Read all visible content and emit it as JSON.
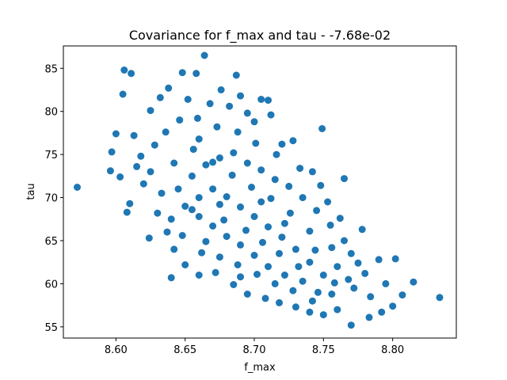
{
  "chart_data": {
    "type": "scatter",
    "title": "Covariance for f_max and tau - -7.68e-02",
    "xlabel": "f_max",
    "ylabel": "tau",
    "xlim": [
      8.562,
      8.846
    ],
    "ylim": [
      53.7,
      87.6
    ],
    "xticks": [
      "8.60",
      "8.65",
      "8.70",
      "8.75",
      "8.80"
    ],
    "xtick_values": [
      8.6,
      8.65,
      8.7,
      8.75,
      8.8
    ],
    "yticks": [
      "55",
      "60",
      "65",
      "70",
      "75",
      "80",
      "85"
    ],
    "ytick_values": [
      55,
      60,
      65,
      70,
      75,
      80,
      85
    ],
    "grid": false,
    "legend": "none",
    "marker_color": "#1f77b4",
    "series": [
      {
        "values": [
          [
            8.572,
            71.2
          ],
          [
            8.834,
            58.4
          ],
          [
            8.606,
            84.8
          ],
          [
            8.611,
            84.4
          ],
          [
            8.605,
            82.0
          ],
          [
            8.664,
            86.5
          ],
          [
            8.648,
            84.5
          ],
          [
            8.658,
            84.4
          ],
          [
            8.687,
            84.2
          ],
          [
            8.638,
            82.7
          ],
          [
            8.676,
            82.5
          ],
          [
            8.69,
            81.8
          ],
          [
            8.705,
            81.4
          ],
          [
            8.71,
            81.3
          ],
          [
            8.632,
            81.6
          ],
          [
            8.652,
            81.4
          ],
          [
            8.625,
            80.1
          ],
          [
            8.749,
            78.0
          ],
          [
            8.6,
            77.4
          ],
          [
            8.613,
            77.2
          ],
          [
            8.597,
            75.3
          ],
          [
            8.596,
            73.1
          ],
          [
            8.603,
            72.4
          ],
          [
            8.61,
            69.3
          ],
          [
            8.608,
            68.3
          ],
          [
            8.624,
            65.3
          ],
          [
            8.64,
            60.7
          ],
          [
            8.815,
            60.2
          ],
          [
            8.807,
            58.7
          ],
          [
            8.8,
            57.4
          ],
          [
            8.792,
            56.7
          ],
          [
            8.783,
            56.1
          ],
          [
            8.77,
            55.2
          ],
          [
            8.76,
            57.0
          ],
          [
            8.772,
            59.5
          ],
          [
            8.78,
            61.2
          ],
          [
            8.79,
            62.8
          ],
          [
            8.802,
            62.9
          ],
          [
            8.795,
            60.0
          ],
          [
            8.778,
            66.3
          ],
          [
            8.762,
            67.6
          ],
          [
            8.753,
            69.5
          ],
          [
            8.765,
            72.2
          ],
          [
            8.742,
            73.0
          ],
          [
            8.728,
            76.6
          ],
          [
            8.72,
            76.2
          ],
          [
            8.712,
            79.6
          ],
          [
            8.7,
            78.8
          ],
          [
            8.695,
            79.8
          ],
          [
            8.682,
            80.6
          ],
          [
            8.668,
            80.9
          ],
          [
            8.659,
            79.2
          ],
          [
            8.646,
            79.0
          ],
          [
            8.636,
            77.6
          ],
          [
            8.628,
            76.1
          ],
          [
            8.618,
            74.8
          ],
          [
            8.625,
            73.0
          ],
          [
            8.633,
            70.5
          ],
          [
            8.63,
            68.2
          ],
          [
            8.637,
            66.0
          ],
          [
            8.642,
            64.0
          ],
          [
            8.65,
            62.2
          ],
          [
            8.66,
            61.0
          ],
          [
            8.672,
            61.3
          ],
          [
            8.685,
            59.9
          ],
          [
            8.695,
            58.8
          ],
          [
            8.708,
            58.3
          ],
          [
            8.718,
            57.8
          ],
          [
            8.73,
            57.3
          ],
          [
            8.74,
            56.7
          ],
          [
            8.75,
            56.4
          ],
          [
            8.746,
            59.0
          ],
          [
            8.735,
            60.3
          ],
          [
            8.722,
            61.0
          ],
          [
            8.71,
            62.0
          ],
          [
            8.7,
            63.3
          ],
          [
            8.69,
            64.5
          ],
          [
            8.68,
            65.5
          ],
          [
            8.67,
            66.7
          ],
          [
            8.66,
            67.8
          ],
          [
            8.65,
            69.0
          ],
          [
            8.645,
            71.0
          ],
          [
            8.655,
            72.5
          ],
          [
            8.665,
            73.8
          ],
          [
            8.675,
            74.6
          ],
          [
            8.685,
            75.2
          ],
          [
            8.695,
            74.0
          ],
          [
            8.705,
            73.2
          ],
          [
            8.715,
            72.1
          ],
          [
            8.725,
            71.3
          ],
          [
            8.735,
            70.0
          ],
          [
            8.745,
            68.5
          ],
          [
            8.755,
            66.8
          ],
          [
            8.765,
            65.0
          ],
          [
            8.77,
            63.5
          ],
          [
            8.76,
            62.0
          ],
          [
            8.75,
            61.0
          ],
          [
            8.74,
            62.5
          ],
          [
            8.73,
            64.0
          ],
          [
            8.72,
            65.4
          ],
          [
            8.71,
            66.6
          ],
          [
            8.7,
            67.8
          ],
          [
            8.69,
            68.9
          ],
          [
            8.68,
            70.1
          ],
          [
            8.67,
            71.0
          ],
          [
            8.66,
            70.0
          ],
          [
            8.655,
            68.6
          ],
          [
            8.665,
            64.9
          ],
          [
            8.675,
            63.1
          ],
          [
            8.688,
            62.2
          ],
          [
            8.702,
            61.1
          ],
          [
            8.715,
            60.0
          ],
          [
            8.728,
            59.2
          ],
          [
            8.742,
            58.0
          ],
          [
            8.756,
            58.8
          ],
          [
            8.768,
            60.5
          ],
          [
            8.784,
            58.5
          ],
          [
            8.74,
            66.1
          ],
          [
            8.726,
            68.2
          ],
          [
            8.712,
            69.9
          ],
          [
            8.698,
            71.2
          ],
          [
            8.684,
            72.6
          ],
          [
            8.67,
            74.1
          ],
          [
            8.656,
            75.6
          ],
          [
            8.642,
            74.0
          ],
          [
            8.64,
            67.5
          ],
          [
            8.648,
            65.6
          ],
          [
            8.662,
            63.6
          ],
          [
            8.678,
            67.4
          ],
          [
            8.694,
            66.2
          ],
          [
            8.706,
            64.8
          ],
          [
            8.718,
            63.5
          ],
          [
            8.732,
            62.0
          ],
          [
            8.744,
            63.9
          ],
          [
            8.756,
            64.2
          ],
          [
            8.748,
            71.4
          ],
          [
            8.733,
            73.4
          ],
          [
            8.716,
            75.0
          ],
          [
            8.701,
            76.3
          ],
          [
            8.688,
            77.6
          ],
          [
            8.673,
            78.2
          ],
          [
            8.66,
            76.8
          ],
          [
            8.62,
            71.6
          ],
          [
            8.615,
            73.6
          ],
          [
            8.69,
            60.8
          ],
          [
            8.675,
            69.2
          ],
          [
            8.705,
            69.5
          ],
          [
            8.722,
            67.0
          ],
          [
            8.758,
            60.1
          ],
          [
            8.775,
            62.4
          ]
        ]
      }
    ]
  }
}
